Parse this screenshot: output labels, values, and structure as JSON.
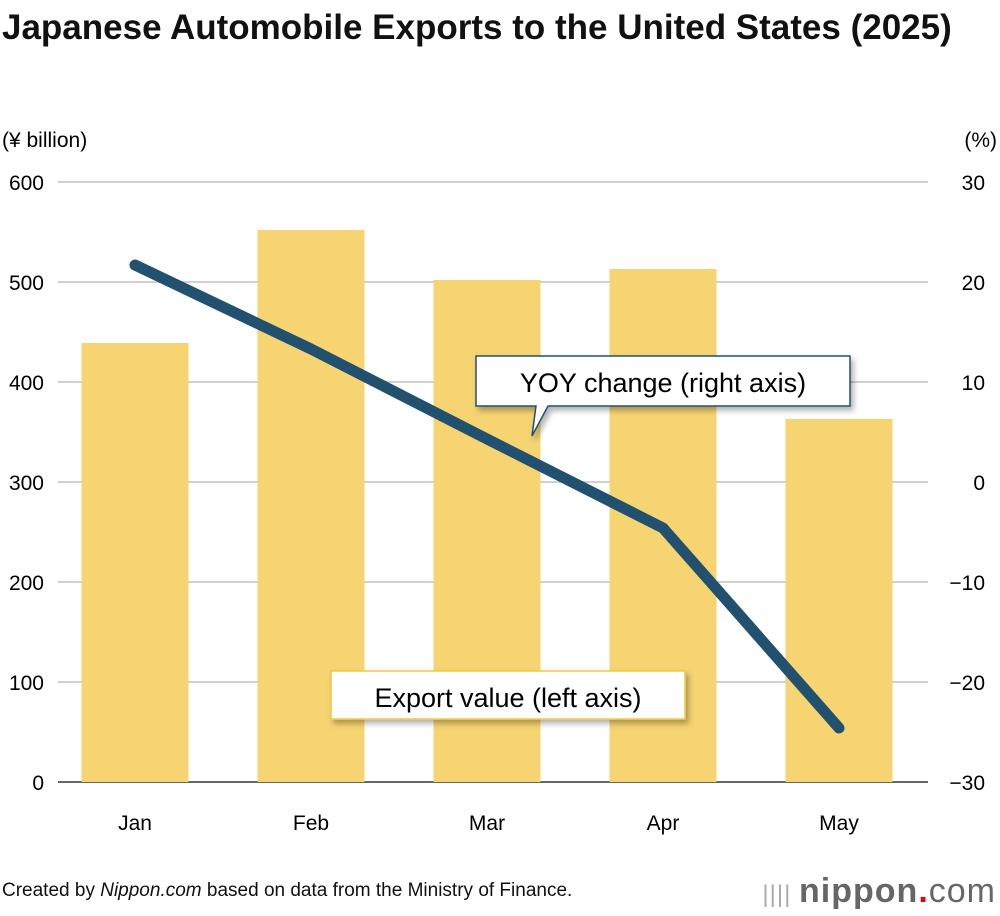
{
  "title": "Japanese Automobile Exports to the United States (2025)",
  "footer": {
    "prefix": "Created by ",
    "source_name": "Nippon.com",
    "suffix": " based on data from the Ministry of Finance."
  },
  "logo": {
    "text": "nippon",
    "dot": ".",
    "com": "com"
  },
  "chart_data": {
    "type": "bar+line",
    "categories": [
      "Jan",
      "Feb",
      "Mar",
      "Apr",
      "May"
    ],
    "series": [
      {
        "name": "Export value (left axis)",
        "type": "bar",
        "axis": "left",
        "values": [
          439,
          552,
          502,
          513,
          363
        ],
        "color": "#f5d471"
      },
      {
        "name": "YOY change (right axis)",
        "type": "line",
        "axis": "right",
        "values": [
          21.7,
          13.3,
          4.3,
          -4.6,
          -24.6
        ],
        "color": "#21516f"
      }
    ],
    "left_axis": {
      "label": "(¥ billion)",
      "range": [
        0,
        600
      ],
      "ticks": [
        "0",
        "100",
        "200",
        "300",
        "400",
        "500",
        "600"
      ]
    },
    "right_axis": {
      "label": "(%)",
      "range": [
        -30,
        30
      ],
      "ticks": [
        "−30",
        "−20",
        "−10",
        "0",
        "10",
        "20",
        "30"
      ]
    },
    "grid": true
  }
}
